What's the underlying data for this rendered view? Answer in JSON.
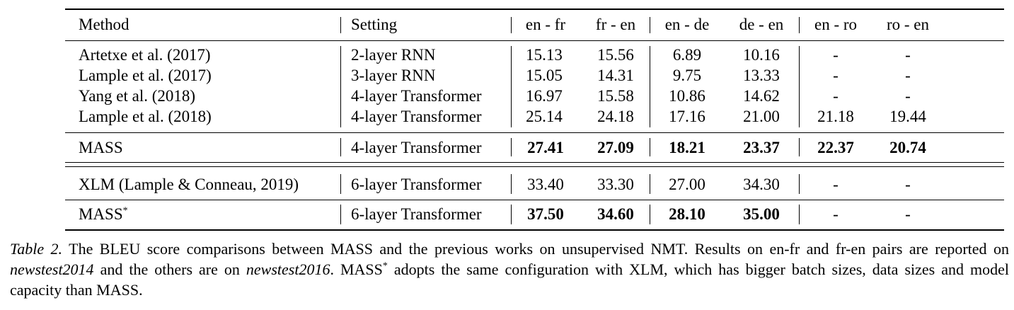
{
  "table": {
    "header": {
      "method": "Method",
      "setting": "Setting",
      "cols": [
        "en - fr",
        "fr - en",
        "en - de",
        "de - en",
        "en - ro",
        "ro - en"
      ]
    },
    "group1": [
      {
        "method": "Artetxe et al. (2017)",
        "setting": "2-layer RNN",
        "values": [
          "15.13",
          "15.56",
          "6.89",
          "10.16",
          "-",
          "-"
        ]
      },
      {
        "method": "Lample et al. (2017)",
        "setting": "3-layer RNN",
        "values": [
          "15.05",
          "14.31",
          "9.75",
          "13.33",
          "-",
          "-"
        ]
      },
      {
        "method": "Yang et al. (2018)",
        "setting": "4-layer Transformer",
        "values": [
          "16.97",
          "15.58",
          "10.86",
          "14.62",
          "-",
          "-"
        ]
      },
      {
        "method": "Lample et al. (2018)",
        "setting": "4-layer Transformer",
        "values": [
          "25.14",
          "24.18",
          "17.16",
          "21.00",
          "21.18",
          "19.44"
        ]
      }
    ],
    "mass_row": {
      "method": "MASS",
      "setting": "4-layer Transformer",
      "values": [
        "27.41",
        "27.09",
        "18.21",
        "23.37",
        "22.37",
        "20.74"
      ]
    },
    "xlm_row": {
      "method": "XLM (Lample & Conneau, 2019)",
      "setting": "6-layer Transformer",
      "values": [
        "33.40",
        "33.30",
        "27.00",
        "34.30",
        "-",
        "-"
      ]
    },
    "mass_star_row": {
      "method": "MASS",
      "method_sup": "*",
      "setting": "6-layer Transformer",
      "values": [
        "37.50",
        "34.60",
        "28.10",
        "35.00",
        "-",
        "-"
      ]
    }
  },
  "caption": {
    "label": "Table 2.",
    "text_1": " The BLEU score comparisons between MASS and the previous works on unsupervised NMT. Results on en-fr and fr-en pairs are reported on ",
    "italic_1": "newstest2014",
    "text_2": " and the others are on ",
    "italic_2": "newstest2016",
    "text_3": ". MASS",
    "sup": "*",
    "text_4": " adopts the same configuration with XLM, which has bigger batch sizes, data sizes and model capacity than MASS."
  }
}
